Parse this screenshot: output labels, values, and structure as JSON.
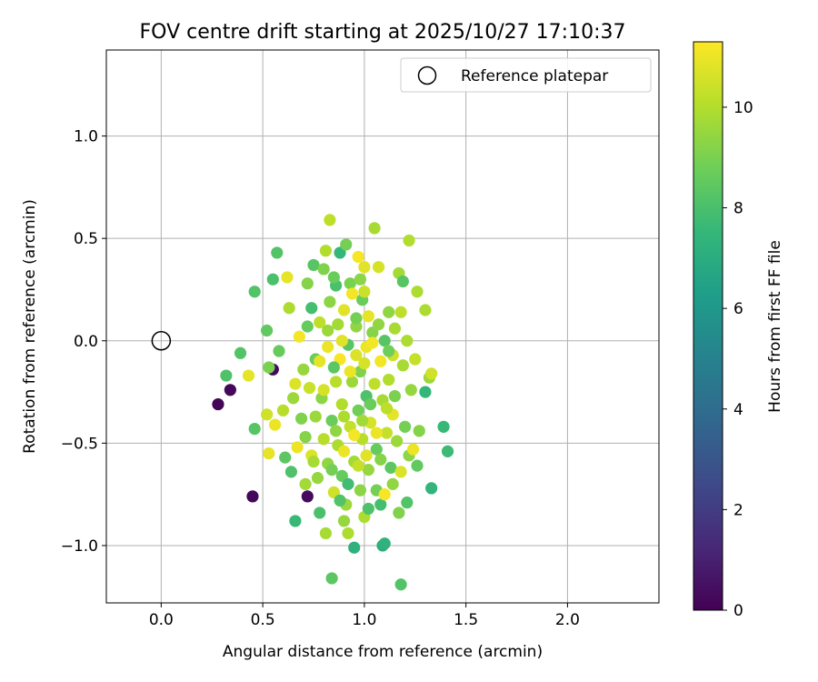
{
  "chart_data": {
    "type": "scatter",
    "title": "FOV centre drift starting at 2025/10/27 17:10:37",
    "xlabel": "Angular distance from reference (arcmin)",
    "ylabel": "Rotation from reference (arcmin)",
    "xlim": [
      -0.27,
      2.45
    ],
    "ylim": [
      -1.28,
      1.42
    ],
    "xticks": [
      0.0,
      0.5,
      1.0,
      1.5,
      2.0
    ],
    "xtick_labels": [
      "0.0",
      "0.5",
      "1.0",
      "1.5",
      "2.0"
    ],
    "yticks": [
      -1.0,
      -0.5,
      0.0,
      0.5,
      1.0
    ],
    "ytick_labels": [
      "−1.0",
      "−0.5",
      "0.0",
      "0.5",
      "1.0"
    ],
    "grid": true,
    "legend": {
      "position": "top-right",
      "entries": [
        "Reference platepar"
      ]
    },
    "reference_point": {
      "x": 0.0,
      "y": 0.0,
      "label": "Reference platepar"
    },
    "colorbar": {
      "label": "Hours from first FF file",
      "colormap": "viridis",
      "range": [
        0,
        11.3
      ],
      "ticks": [
        0,
        2,
        4,
        6,
        8,
        10
      ],
      "tick_labels": [
        "0",
        "2",
        "4",
        "6",
        "8",
        "10"
      ]
    },
    "points": [
      {
        "x": 0.28,
        "y": -0.31,
        "h": 0.1
      },
      {
        "x": 0.34,
        "y": -0.24,
        "h": 0.2
      },
      {
        "x": 0.45,
        "y": -0.76,
        "h": 0.2
      },
      {
        "x": 0.55,
        "y": -0.14,
        "h": 0.3
      },
      {
        "x": 0.72,
        "y": -0.76,
        "h": 0.3
      },
      {
        "x": 0.32,
        "y": -0.17,
        "h": 8.1
      },
      {
        "x": 0.39,
        "y": -0.06,
        "h": 8.2
      },
      {
        "x": 0.43,
        "y": -0.17,
        "h": 10.9
      },
      {
        "x": 0.46,
        "y": -0.43,
        "h": 8.3
      },
      {
        "x": 0.46,
        "y": 0.24,
        "h": 8.2
      },
      {
        "x": 0.52,
        "y": 0.05,
        "h": 8.5
      },
      {
        "x": 0.53,
        "y": -0.13,
        "h": 9.0
      },
      {
        "x": 0.52,
        "y": -0.36,
        "h": 10.5
      },
      {
        "x": 0.53,
        "y": -0.55,
        "h": 10.9
      },
      {
        "x": 0.55,
        "y": 0.3,
        "h": 8.0
      },
      {
        "x": 0.57,
        "y": 0.43,
        "h": 8.2
      },
      {
        "x": 0.56,
        "y": -0.41,
        "h": 11.0
      },
      {
        "x": 0.58,
        "y": -0.05,
        "h": 8.6
      },
      {
        "x": 0.6,
        "y": -0.34,
        "h": 10.1
      },
      {
        "x": 0.61,
        "y": -0.57,
        "h": 8.4
      },
      {
        "x": 0.62,
        "y": 0.31,
        "h": 10.9
      },
      {
        "x": 0.63,
        "y": 0.16,
        "h": 9.9
      },
      {
        "x": 0.64,
        "y": -0.64,
        "h": 8.1
      },
      {
        "x": 0.65,
        "y": -0.28,
        "h": 9.6
      },
      {
        "x": 0.66,
        "y": -0.88,
        "h": 7.6
      },
      {
        "x": 0.66,
        "y": -0.21,
        "h": 10.7
      },
      {
        "x": 0.67,
        "y": -0.52,
        "h": 11.0
      },
      {
        "x": 0.68,
        "y": 0.02,
        "h": 11.1
      },
      {
        "x": 0.7,
        "y": -0.14,
        "h": 9.5
      },
      {
        "x": 0.71,
        "y": -0.47,
        "h": 9.2
      },
      {
        "x": 0.72,
        "y": 0.07,
        "h": 8.6
      },
      {
        "x": 0.73,
        "y": -0.23,
        "h": 10.4
      },
      {
        "x": 0.74,
        "y": 0.16,
        "h": 7.9
      },
      {
        "x": 0.74,
        "y": -0.56,
        "h": 10.7
      },
      {
        "x": 0.75,
        "y": 0.37,
        "h": 8.3
      },
      {
        "x": 0.76,
        "y": -0.37,
        "h": 9.6
      },
      {
        "x": 0.76,
        "y": -0.09,
        "h": 8.7
      },
      {
        "x": 0.77,
        "y": -0.67,
        "h": 9.5
      },
      {
        "x": 0.78,
        "y": 0.09,
        "h": 10.2
      },
      {
        "x": 0.78,
        "y": -0.84,
        "h": 8.0
      },
      {
        "x": 0.79,
        "y": -0.28,
        "h": 9.3
      },
      {
        "x": 0.8,
        "y": 0.35,
        "h": 9.1
      },
      {
        "x": 0.8,
        "y": -0.48,
        "h": 10.1
      },
      {
        "x": 0.81,
        "y": -0.94,
        "h": 9.8
      },
      {
        "x": 0.81,
        "y": 0.44,
        "h": 10.0
      },
      {
        "x": 0.82,
        "y": -0.03,
        "h": 11.0
      },
      {
        "x": 0.82,
        "y": -0.6,
        "h": 9.4
      },
      {
        "x": 0.83,
        "y": 0.59,
        "h": 10.2
      },
      {
        "x": 0.83,
        "y": 0.19,
        "h": 9.3
      },
      {
        "x": 0.84,
        "y": -1.16,
        "h": 8.4
      },
      {
        "x": 0.84,
        "y": -0.39,
        "h": 8.7
      },
      {
        "x": 0.85,
        "y": -0.74,
        "h": 10.5
      },
      {
        "x": 0.86,
        "y": -0.2,
        "h": 10.1
      },
      {
        "x": 0.86,
        "y": 0.27,
        "h": 8.0
      },
      {
        "x": 0.87,
        "y": 0.08,
        "h": 9.7
      },
      {
        "x": 0.87,
        "y": -0.51,
        "h": 9.9
      },
      {
        "x": 0.88,
        "y": 0.43,
        "h": 7.5
      },
      {
        "x": 0.88,
        "y": -0.09,
        "h": 11.2
      },
      {
        "x": 0.89,
        "y": -0.66,
        "h": 8.6
      },
      {
        "x": 0.89,
        "y": -0.31,
        "h": 10.0
      },
      {
        "x": 0.9,
        "y": 0.15,
        "h": 10.8
      },
      {
        "x": 0.9,
        "y": -0.54,
        "h": 11.0
      },
      {
        "x": 0.91,
        "y": 0.47,
        "h": 8.9
      },
      {
        "x": 0.91,
        "y": -0.8,
        "h": 9.6
      },
      {
        "x": 0.92,
        "y": -0.94,
        "h": 9.9
      },
      {
        "x": 0.92,
        "y": -0.02,
        "h": 8.3
      },
      {
        "x": 0.93,
        "y": 0.28,
        "h": 9.0
      },
      {
        "x": 0.93,
        "y": -0.42,
        "h": 10.3
      },
      {
        "x": 0.94,
        "y": -0.2,
        "h": 9.6
      },
      {
        "x": 0.94,
        "y": 0.23,
        "h": 11.1
      },
      {
        "x": 0.95,
        "y": -1.01,
        "h": 7.2
      },
      {
        "x": 0.95,
        "y": -0.59,
        "h": 9.7
      },
      {
        "x": 0.96,
        "y": -0.07,
        "h": 10.7
      },
      {
        "x": 0.96,
        "y": 0.07,
        "h": 9.4
      },
      {
        "x": 0.97,
        "y": -0.34,
        "h": 8.8
      },
      {
        "x": 0.97,
        "y": 0.41,
        "h": 11.2
      },
      {
        "x": 0.98,
        "y": -0.73,
        "h": 9.3
      },
      {
        "x": 0.98,
        "y": -0.15,
        "h": 9.1
      },
      {
        "x": 0.99,
        "y": 0.2,
        "h": 8.7
      },
      {
        "x": 0.99,
        "y": -0.48,
        "h": 10.1
      },
      {
        "x": 1.0,
        "y": 0.36,
        "h": 10.8
      },
      {
        "x": 1.0,
        "y": -0.86,
        "h": 9.9
      },
      {
        "x": 1.0,
        "y": 0.24,
        "h": 10.4
      },
      {
        "x": 1.01,
        "y": -0.03,
        "h": 11.0
      },
      {
        "x": 1.01,
        "y": -0.27,
        "h": 8.1
      },
      {
        "x": 1.02,
        "y": 0.12,
        "h": 10.9
      },
      {
        "x": 1.02,
        "y": -0.63,
        "h": 9.5
      },
      {
        "x": 1.03,
        "y": -0.4,
        "h": 10.6
      },
      {
        "x": 1.04,
        "y": 0.04,
        "h": 9.2
      },
      {
        "x": 1.05,
        "y": 0.55,
        "h": 9.8
      },
      {
        "x": 1.05,
        "y": -0.21,
        "h": 10.2
      },
      {
        "x": 1.06,
        "y": -0.53,
        "h": 8.6
      },
      {
        "x": 1.06,
        "y": -0.73,
        "h": 8.9
      },
      {
        "x": 1.07,
        "y": 0.36,
        "h": 10.6
      },
      {
        "x": 1.08,
        "y": -0.1,
        "h": 11.1
      },
      {
        "x": 1.08,
        "y": -0.8,
        "h": 7.9
      },
      {
        "x": 1.09,
        "y": -1.0,
        "h": 7.1
      },
      {
        "x": 1.09,
        "y": -0.29,
        "h": 9.8
      },
      {
        "x": 1.1,
        "y": 0.0,
        "h": 8.3
      },
      {
        "x": 1.1,
        "y": -0.99,
        "h": 7.3
      },
      {
        "x": 1.1,
        "y": -0.75,
        "h": 11.2
      },
      {
        "x": 1.11,
        "y": -0.45,
        "h": 10.3
      },
      {
        "x": 1.12,
        "y": 0.14,
        "h": 9.4
      },
      {
        "x": 1.12,
        "y": -0.19,
        "h": 10.0
      },
      {
        "x": 1.13,
        "y": -0.62,
        "h": 8.4
      },
      {
        "x": 1.14,
        "y": -0.36,
        "h": 10.9
      },
      {
        "x": 1.14,
        "y": -0.07,
        "h": 10.5
      },
      {
        "x": 1.15,
        "y": -0.27,
        "h": 9.0
      },
      {
        "x": 1.16,
        "y": -0.49,
        "h": 9.6
      },
      {
        "x": 1.17,
        "y": 0.33,
        "h": 9.7
      },
      {
        "x": 1.17,
        "y": -0.84,
        "h": 9.1
      },
      {
        "x": 1.18,
        "y": -0.64,
        "h": 10.7
      },
      {
        "x": 1.18,
        "y": 0.14,
        "h": 10.2
      },
      {
        "x": 1.18,
        "y": -1.19,
        "h": 8.2
      },
      {
        "x": 1.19,
        "y": 0.29,
        "h": 8.3
      },
      {
        "x": 1.19,
        "y": -0.12,
        "h": 9.8
      },
      {
        "x": 1.2,
        "y": -0.42,
        "h": 8.9
      },
      {
        "x": 1.21,
        "y": -0.79,
        "h": 8.2
      },
      {
        "x": 1.21,
        "y": 0.0,
        "h": 9.9
      },
      {
        "x": 1.22,
        "y": 0.49,
        "h": 10.0
      },
      {
        "x": 1.22,
        "y": -0.56,
        "h": 9.3
      },
      {
        "x": 1.23,
        "y": -0.24,
        "h": 9.5
      },
      {
        "x": 1.24,
        "y": -0.53,
        "h": 11.0
      },
      {
        "x": 1.25,
        "y": -0.09,
        "h": 10.3
      },
      {
        "x": 1.26,
        "y": 0.24,
        "h": 9.9
      },
      {
        "x": 1.26,
        "y": -0.61,
        "h": 8.5
      },
      {
        "x": 1.3,
        "y": -0.25,
        "h": 7.5
      },
      {
        "x": 1.3,
        "y": 0.15,
        "h": 9.9
      },
      {
        "x": 1.32,
        "y": -0.18,
        "h": 9.6
      },
      {
        "x": 1.33,
        "y": -0.16,
        "h": 10.5
      },
      {
        "x": 1.33,
        "y": -0.72,
        "h": 7.4
      },
      {
        "x": 1.39,
        "y": -0.42,
        "h": 7.6
      },
      {
        "x": 1.41,
        "y": -0.54,
        "h": 7.7
      },
      {
        "x": 0.75,
        "y": -0.59,
        "h": 9.8
      },
      {
        "x": 0.8,
        "y": -0.24,
        "h": 10.6
      },
      {
        "x": 0.84,
        "y": -0.63,
        "h": 8.9
      },
      {
        "x": 0.86,
        "y": -0.44,
        "h": 9.4
      },
      {
        "x": 0.88,
        "y": -0.78,
        "h": 8.2
      },
      {
        "x": 0.9,
        "y": -0.37,
        "h": 9.9
      },
      {
        "x": 0.92,
        "y": -0.7,
        "h": 7.8
      },
      {
        "x": 0.95,
        "y": -0.46,
        "h": 11.1
      },
      {
        "x": 0.97,
        "y": -0.61,
        "h": 10.3
      },
      {
        "x": 0.99,
        "y": -0.39,
        "h": 9.7
      },
      {
        "x": 1.01,
        "y": -0.56,
        "h": 10.8
      },
      {
        "x": 1.03,
        "y": -0.31,
        "h": 8.7
      },
      {
        "x": 1.06,
        "y": -0.45,
        "h": 11.0
      },
      {
        "x": 1.08,
        "y": -0.58,
        "h": 9.2
      },
      {
        "x": 1.11,
        "y": -0.33,
        "h": 10.2
      },
      {
        "x": 0.78,
        "y": -0.1,
        "h": 10.9
      },
      {
        "x": 0.82,
        "y": 0.05,
        "h": 9.6
      },
      {
        "x": 0.85,
        "y": -0.13,
        "h": 8.4
      },
      {
        "x": 0.89,
        "y": 0.0,
        "h": 10.8
      },
      {
        "x": 0.93,
        "y": -0.15,
        "h": 11.0
      },
      {
        "x": 0.96,
        "y": 0.11,
        "h": 8.9
      },
      {
        "x": 1.0,
        "y": -0.11,
        "h": 10.6
      },
      {
        "x": 1.04,
        "y": -0.01,
        "h": 11.1
      },
      {
        "x": 1.07,
        "y": 0.08,
        "h": 9.4
      },
      {
        "x": 1.12,
        "y": -0.05,
        "h": 8.8
      },
      {
        "x": 0.72,
        "y": 0.28,
        "h": 9.2
      },
      {
        "x": 0.85,
        "y": 0.31,
        "h": 8.7
      },
      {
        "x": 0.98,
        "y": 0.3,
        "h": 9.3
      },
      {
        "x": 1.15,
        "y": 0.06,
        "h": 9.8
      },
      {
        "x": 0.69,
        "y": -0.38,
        "h": 9.1
      },
      {
        "x": 0.71,
        "y": -0.7,
        "h": 9.7
      },
      {
        "x": 0.9,
        "y": -0.88,
        "h": 9.5
      },
      {
        "x": 1.02,
        "y": -0.82,
        "h": 8.1
      },
      {
        "x": 1.14,
        "y": -0.7,
        "h": 9.4
      },
      {
        "x": 1.27,
        "y": -0.44,
        "h": 9.2
      }
    ]
  }
}
